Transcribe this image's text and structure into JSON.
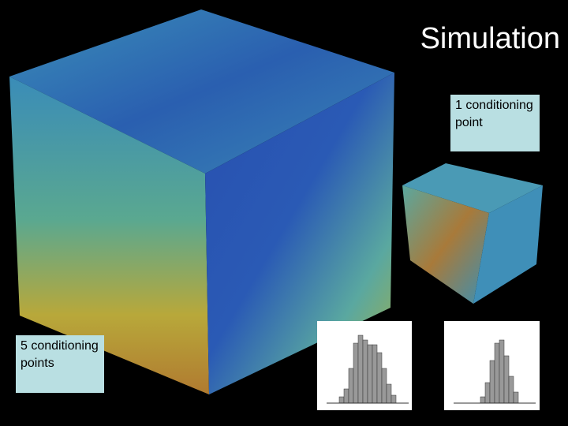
{
  "title": "Simulation",
  "labels": {
    "small_cube": "1 conditioning point",
    "large_cube": "5 conditioning points"
  }
}
